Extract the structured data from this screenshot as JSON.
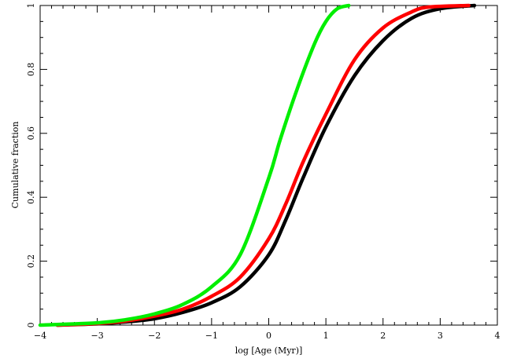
{
  "chart_data": {
    "type": "line",
    "title": "",
    "xlabel": "log [Age (Myr)]",
    "ylabel": "Cumulative fraction",
    "xlim": [
      -4,
      4
    ],
    "ylim": [
      0,
      1
    ],
    "x_ticks": [
      -4,
      -3,
      -2,
      -1,
      0,
      1,
      2,
      3,
      4
    ],
    "x_tick_labels": [
      "−4",
      "−3",
      "−2",
      "−1",
      "0",
      "1",
      "2",
      "3",
      "4"
    ],
    "y_ticks": [
      0,
      0.2,
      0.4,
      0.6,
      0.8,
      1
    ],
    "y_tick_labels": [
      "0",
      "0.2",
      "0.4",
      "0.6",
      "0.8",
      "1"
    ],
    "grid": false,
    "legend": "none",
    "series": [
      {
        "color": "#000000",
        "x": [
          -3.7,
          -3.0,
          -2.5,
          -2.0,
          -1.5,
          -1.0,
          -0.5,
          0.0,
          0.3,
          0.6,
          1.0,
          1.5,
          2.0,
          2.5,
          3.0,
          3.6
        ],
        "y": [
          0.0,
          0.004,
          0.01,
          0.02,
          0.04,
          0.07,
          0.12,
          0.22,
          0.33,
          0.46,
          0.62,
          0.78,
          0.89,
          0.96,
          0.99,
          1.0
        ]
      },
      {
        "color": "#ff0000",
        "x": [
          -3.7,
          -3.0,
          -2.5,
          -2.0,
          -1.5,
          -1.0,
          -0.5,
          0.0,
          0.3,
          0.6,
          1.0,
          1.5,
          2.0,
          2.5,
          2.8,
          3.5
        ],
        "y": [
          0.0,
          0.005,
          0.013,
          0.028,
          0.05,
          0.09,
          0.15,
          0.27,
          0.38,
          0.51,
          0.66,
          0.83,
          0.93,
          0.98,
          0.995,
          1.0
        ]
      },
      {
        "color": "#00ee00",
        "x": [
          -4.0,
          -3.0,
          -2.5,
          -2.0,
          -1.5,
          -1.0,
          -0.5,
          0.0,
          0.2,
          0.5,
          0.8,
          1.0,
          1.2,
          1.4
        ],
        "y": [
          0.0,
          0.007,
          0.017,
          0.035,
          0.065,
          0.12,
          0.22,
          0.46,
          0.58,
          0.74,
          0.88,
          0.95,
          0.99,
          1.0
        ]
      }
    ]
  }
}
